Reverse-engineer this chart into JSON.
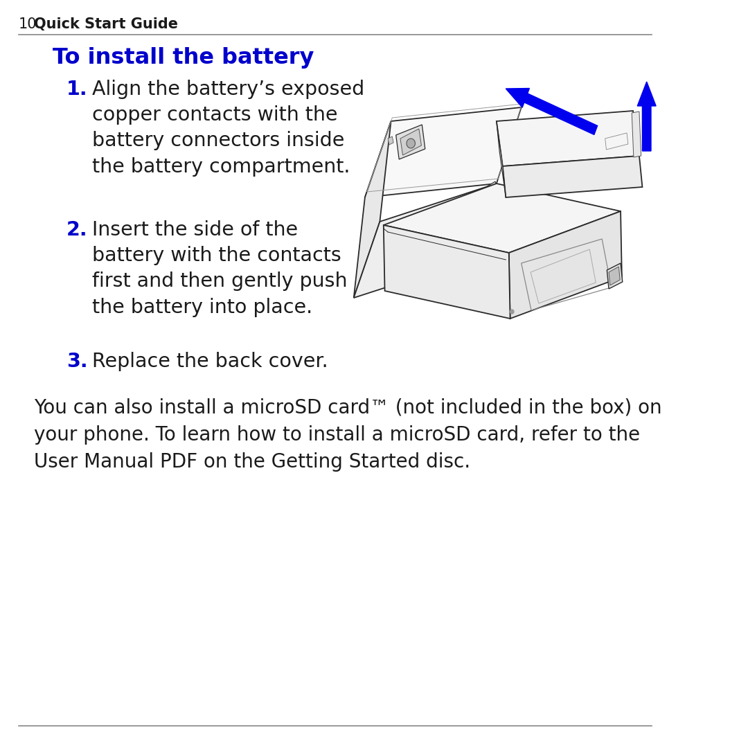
{
  "bg_color": "#ffffff",
  "header_number": "10",
  "header_text": "Quick Start Guide",
  "header_line_color": "#888888",
  "section_title": "To install the battery",
  "section_title_color": "#0000cc",
  "steps": [
    {
      "number": "1.",
      "number_color": "#0000cc",
      "text": "Align the battery’s exposed\ncopper contacts with the\nbattery connectors inside\nthe battery compartment."
    },
    {
      "number": "2.",
      "number_color": "#0000cc",
      "text": "Insert the side of the\nbattery with the contacts\nfirst and then gently push\nthe battery into place."
    },
    {
      "number": "3.",
      "number_color": "#0000cc",
      "text": "Replace the back cover."
    }
  ],
  "paragraph": "You can also install a microSD card™ (not included in the box) on\nyour phone. To learn how to install a microSD card, refer to the\nUser Manual PDF on the Getting Started disc.",
  "footer_line_color": "#888888",
  "arrow_color": "#0000ee",
  "text_color": "#1a1a1a",
  "step_fontsize": 20.5,
  "header_fontsize": 15,
  "title_fontsize": 23,
  "para_fontsize": 20
}
